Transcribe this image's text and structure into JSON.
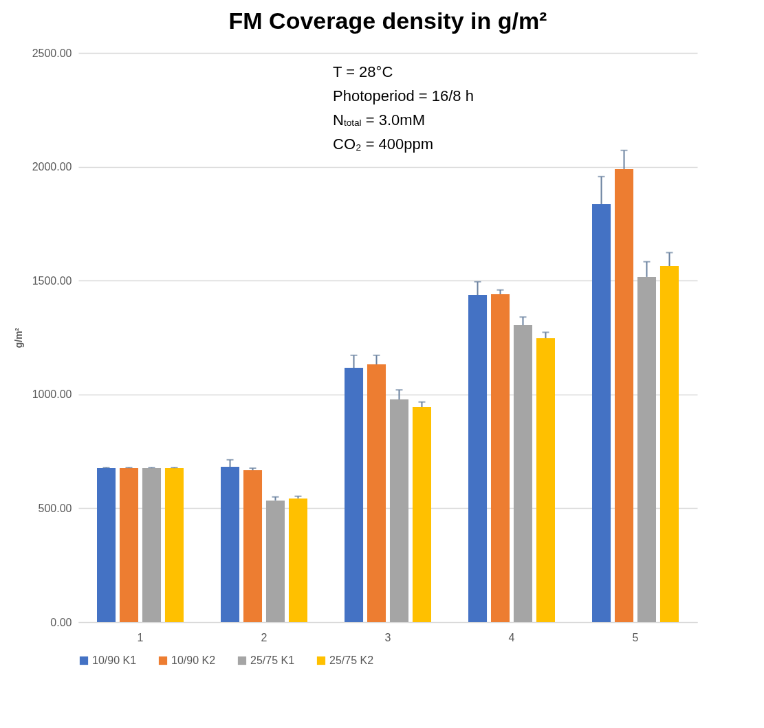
{
  "chart_data": {
    "type": "bar",
    "title": "FM Coverage density in g/m²",
    "ylabel": "g/m²",
    "categories": [
      "1",
      "2",
      "3",
      "4",
      "5"
    ],
    "series": [
      {
        "name": "10/90 K1",
        "color": "#4472c4",
        "values": [
          676,
          682,
          1117,
          1437,
          1836
        ],
        "errors": [
          [
            676,
            679
          ],
          [
            682,
            713
          ],
          [
            1117,
            1172
          ],
          [
            1437,
            1495
          ],
          [
            1836,
            1957
          ]
        ]
      },
      {
        "name": "10/90 K2",
        "color": "#ed7d31",
        "values": [
          676,
          667,
          1132,
          1440,
          1990
        ],
        "errors": [
          [
            676,
            679
          ],
          [
            667,
            676
          ],
          [
            1132,
            1172
          ],
          [
            1440,
            1459
          ],
          [
            1990,
            2072
          ]
        ]
      },
      {
        "name": "25/75 K1",
        "color": "#a5a5a5",
        "values": [
          676,
          534,
          978,
          1304,
          1516
        ],
        "errors": [
          [
            676,
            679
          ],
          [
            534,
            550
          ],
          [
            978,
            1020
          ],
          [
            1304,
            1340
          ],
          [
            1516,
            1583
          ]
        ]
      },
      {
        "name": "25/75 K2",
        "color": "#ffc000",
        "values": [
          676,
          543,
          945,
          1247,
          1564
        ],
        "errors": [
          [
            676,
            679
          ],
          [
            543,
            553
          ],
          [
            945,
            967
          ],
          [
            1247,
            1273
          ],
          [
            1564,
            1623
          ]
        ]
      }
    ],
    "ylim": [
      0,
      2500
    ],
    "yticks": [
      {
        "value": 0,
        "label": "0.00"
      },
      {
        "value": 500,
        "label": "500.00"
      },
      {
        "value": 1000,
        "label": "1000.00"
      },
      {
        "value": 1500,
        "label": "1500.00"
      },
      {
        "value": 2000,
        "label": "2000.00"
      },
      {
        "value": 2500,
        "label": "2500.00"
      }
    ],
    "annotations": [
      "T = 28°C",
      "Photoperiod = 16/8 h",
      "N$_{total}$ = 3.0mM",
      "CO₂ = 400ppm"
    ],
    "grid": "y",
    "legend": "bottom"
  }
}
